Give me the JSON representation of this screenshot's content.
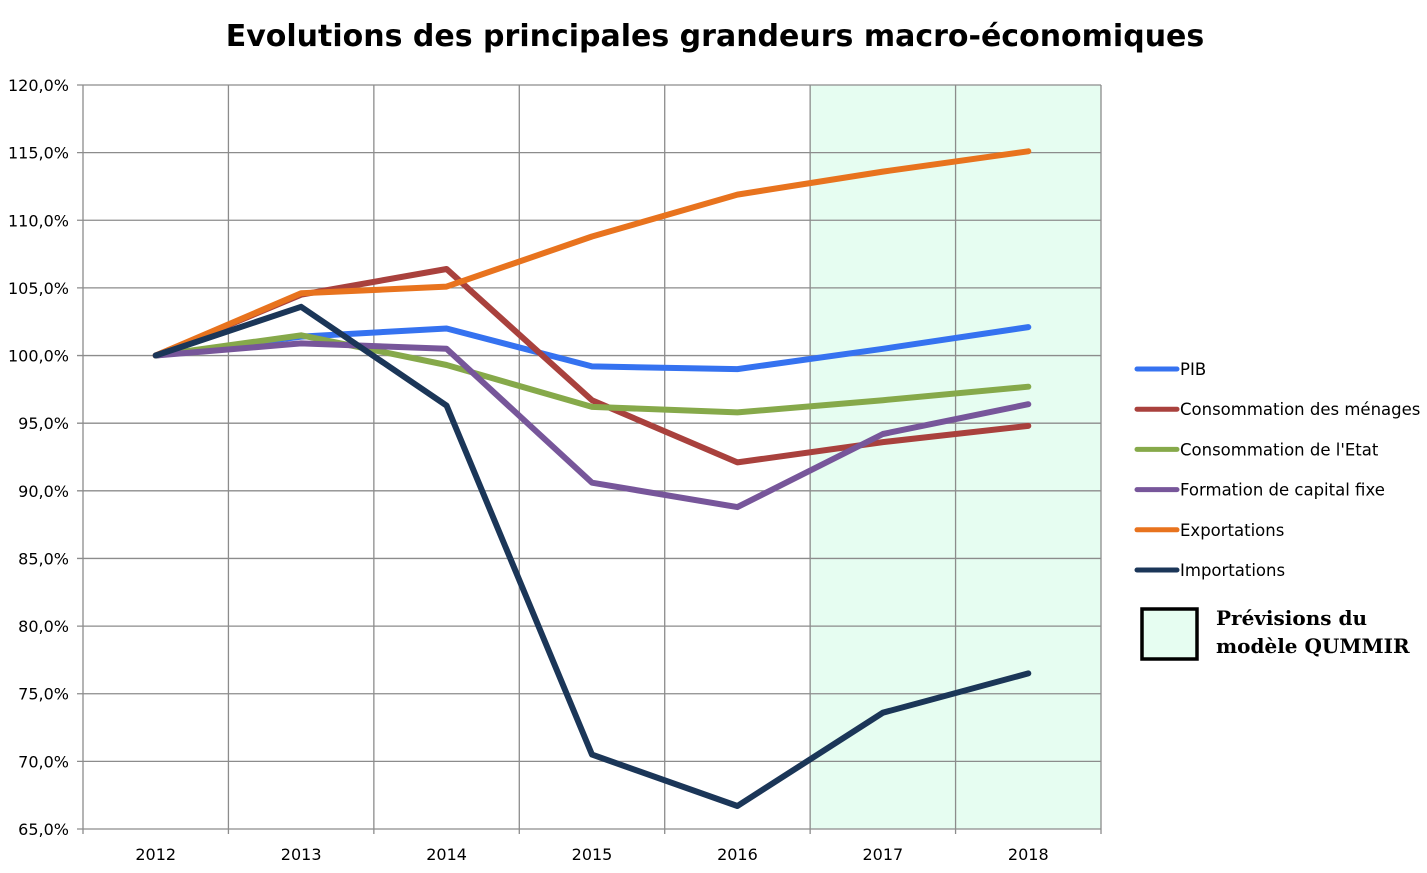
{
  "chart_data": {
    "type": "line",
    "title": "Evolutions des principales grandeurs macro-économiques",
    "xlabel": "",
    "ylabel": "",
    "categories": [
      "2012",
      "2013",
      "2014",
      "2015",
      "2016",
      "2017",
      "2018"
    ],
    "ylim": [
      65,
      120
    ],
    "y_ticks": [
      "65,0%",
      "70,0%",
      "75,0%",
      "80,0%",
      "85,0%",
      "90,0%",
      "95,0%",
      "100,0%",
      "105,0%",
      "110,0%",
      "115,0%",
      "120,0%"
    ],
    "grid": true,
    "legend_position": "right",
    "forecast": {
      "label_line1": "Prévisions du",
      "label_line2": "modèle QUMMIR",
      "color": "#e6fdf1"
    },
    "series": [
      {
        "name": "PIB",
        "color": "#3572f0",
        "values": [
          100.0,
          101.4,
          102.0,
          99.2,
          99.0,
          100.5,
          102.1
        ]
      },
      {
        "name": "Consommation des ménages",
        "color": "#a9413d",
        "values": [
          100.0,
          104.5,
          106.4,
          96.7,
          92.1,
          93.6,
          94.8
        ]
      },
      {
        "name": "Consommation de l'Etat",
        "color": "#86a94a",
        "values": [
          100.0,
          101.5,
          99.3,
          96.2,
          95.8,
          96.7,
          97.7
        ]
      },
      {
        "name": "Formation de capital fixe",
        "color": "#77569a",
        "values": [
          100.0,
          100.9,
          100.5,
          90.6,
          88.8,
          94.2,
          96.4
        ]
      },
      {
        "name": "Exportations",
        "color": "#e8731e",
        "values": [
          100.0,
          104.6,
          105.1,
          108.8,
          111.9,
          113.6,
          115.1
        ]
      },
      {
        "name": "Importations",
        "color": "#1b3658",
        "values": [
          100.0,
          103.6,
          96.3,
          70.5,
          66.7,
          73.6,
          76.5
        ]
      }
    ]
  }
}
